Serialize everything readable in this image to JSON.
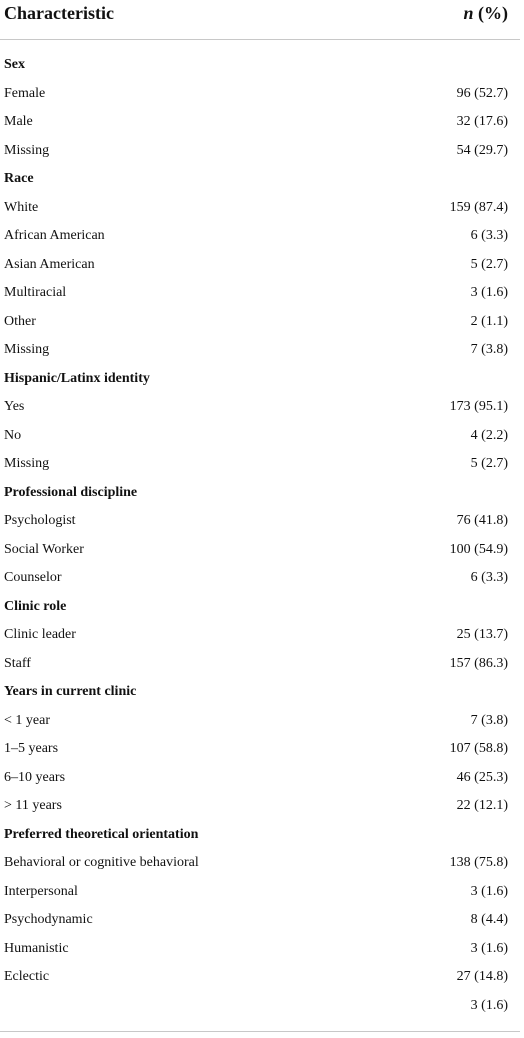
{
  "header": {
    "characteristic": "Characteristic",
    "n": "n",
    "pct": "(%)"
  },
  "sections": [
    {
      "title": "Sex",
      "rows": [
        {
          "label": "Female",
          "value": "96 (52.7)"
        },
        {
          "label": "Male",
          "value": "32 (17.6)"
        },
        {
          "label": "Missing",
          "value": "54 (29.7)"
        }
      ]
    },
    {
      "title": "Race",
      "rows": [
        {
          "label": "White",
          "value": "159 (87.4)"
        },
        {
          "label": "African American",
          "value": "6 (3.3)"
        },
        {
          "label": "Asian American",
          "value": "5 (2.7)"
        },
        {
          "label": "Multiracial",
          "value": "3 (1.6)"
        },
        {
          "label": "Other",
          "value": "2 (1.1)"
        },
        {
          "label": "Missing",
          "value": "7 (3.8)"
        }
      ]
    },
    {
      "title": "Hispanic/Latinx identity",
      "rows": [
        {
          "label": "Yes",
          "value": "173 (95.1)"
        },
        {
          "label": "No",
          "value": "4 (2.2)"
        },
        {
          "label": "Missing",
          "value": "5 (2.7)"
        }
      ]
    },
    {
      "title": "Professional discipline",
      "rows": [
        {
          "label": "Psychologist",
          "value": "76 (41.8)"
        },
        {
          "label": "Social Worker",
          "value": "100 (54.9)"
        },
        {
          "label": "Counselor",
          "value": "6 (3.3)"
        }
      ]
    },
    {
      "title": "Clinic role",
      "rows": [
        {
          "label": "Clinic leader",
          "value": "25 (13.7)"
        },
        {
          "label": "Staff",
          "value": "157 (86.3)"
        }
      ]
    },
    {
      "title": "Years in current clinic",
      "rows": [
        {
          "label": "< 1 year",
          "value": "7 (3.8)"
        },
        {
          "label": "1–5 years",
          "value": "107 (58.8)"
        },
        {
          "label": "6–10 years",
          "value": "46 (25.3)"
        },
        {
          "label": "> 11 years",
          "value": "22 (12.1)"
        }
      ]
    },
    {
      "title": "Preferred theoretical orientation",
      "rows": [
        {
          "label": "Behavioral or cognitive behavioral",
          "value": "138 (75.8)"
        },
        {
          "label": "Interpersonal",
          "value": "3 (1.6)"
        },
        {
          "label": "Psychodynamic",
          "value": "8 (4.4)"
        },
        {
          "label": "Humanistic",
          "value": "3 (1.6)"
        },
        {
          "label": "Eclectic",
          "value": "27 (14.8)"
        },
        {
          "value": "3 (1.6)"
        }
      ]
    }
  ]
}
